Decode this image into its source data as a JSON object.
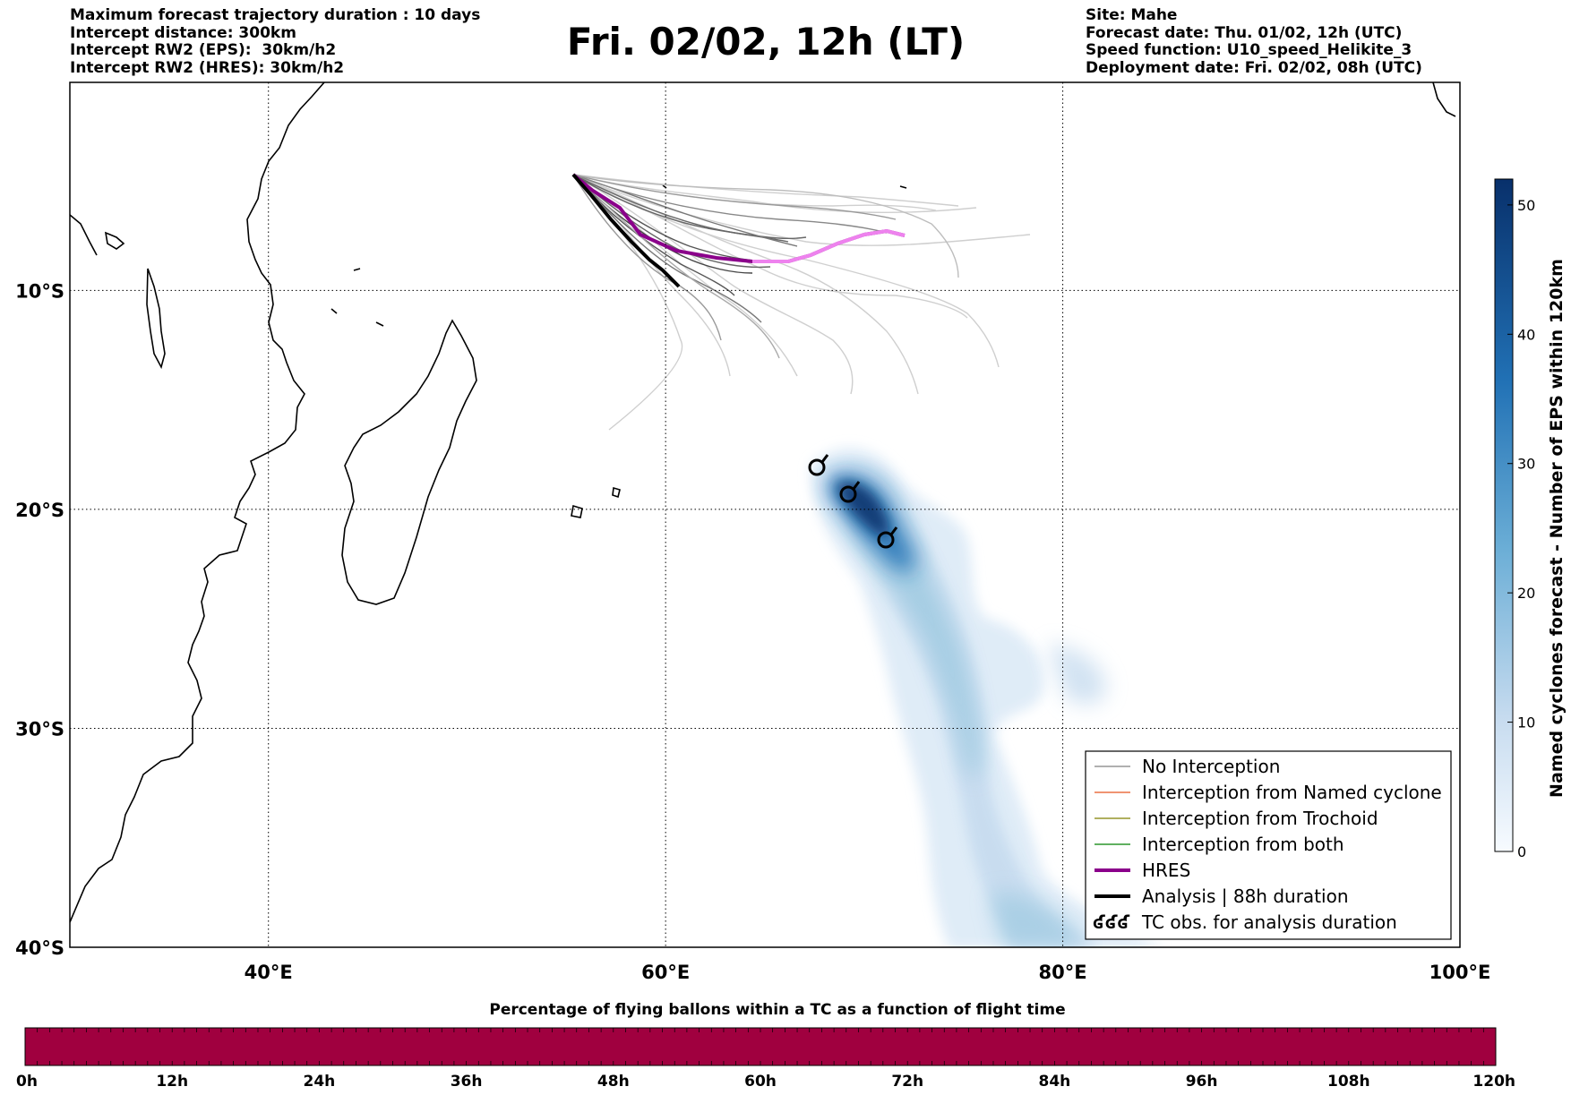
{
  "header_left": [
    "Maximum forecast trajectory duration : 10 days",
    "Intercept distance: 300km",
    "Intercept RW2 (EPS):  30km/h2",
    "Intercept RW2 (HRES): 30km/h2"
  ],
  "header_right": [
    "Site: Mahe",
    "Forecast date: Thu. 01/02, 12h (UTC)",
    "Speed function: U10_speed_Helikite_3",
    "Deployment date: Fri. 02/02, 08h (UTC)"
  ],
  "title": "Fri. 02/02, 12h (LT)",
  "map": {
    "lon_range": [
      30,
      100
    ],
    "lat_range": [
      -40,
      -0.5
    ],
    "lon_ticks": [
      {
        "value": 40,
        "label": "40°E"
      },
      {
        "value": 60,
        "label": "60°E"
      },
      {
        "value": 80,
        "label": "80°E"
      },
      {
        "value": 100,
        "label": "100°E"
      }
    ],
    "lat_ticks": [
      {
        "value": -10,
        "label": "10°S"
      },
      {
        "value": -20,
        "label": "20°S"
      },
      {
        "value": -30,
        "label": "30°S"
      },
      {
        "value": -40,
        "label": "40°S"
      }
    ],
    "grid": "dotted"
  },
  "legend": {
    "placement": "lower-right",
    "items": [
      {
        "label": "No Interception",
        "color": "#808080",
        "style": "thin-line"
      },
      {
        "label": "Interception from Named cyclone",
        "color": "#e8531f",
        "style": "thin-line"
      },
      {
        "label": "Interception from Trochoid",
        "color": "#808000",
        "style": "thin-line"
      },
      {
        "label": "Interception from both",
        "color": "#008000",
        "style": "thin-line"
      },
      {
        "label": "HRES",
        "color": "#8b008b",
        "style": "thick-line"
      },
      {
        "label": "Analysis | 88h duration",
        "color": "#000000",
        "style": "thick-line"
      },
      {
        "label": "TC obs. for analysis duration",
        "color": "#000000",
        "style": "cyclone-symbols",
        "symbol_text": "ʛʛʛ"
      }
    ]
  },
  "colorbar_right": {
    "label": "Named cyclones forecast - Number of EPS within 120km",
    "range": [
      0,
      52
    ],
    "ticks": [
      0,
      10,
      20,
      30,
      40,
      50
    ],
    "colormap": "Blues"
  },
  "colorbar_bottom": {
    "title": "Percentage of flying ballons within a TC as a function of flight time",
    "color": "#a0003f",
    "ticks": [
      "0h",
      "12h",
      "24h",
      "36h",
      "48h",
      "60h",
      "72h",
      "84h",
      "96h",
      "108h",
      "120h"
    ]
  },
  "chart_data": {
    "type": "map",
    "deployment_site": {
      "name": "Mahe",
      "lon": 55.5,
      "lat": -4.6
    },
    "tc_observations": [
      {
        "lon": 67.7,
        "lat": -19.2
      },
      {
        "lon": 69.3,
        "lat": -20.4
      },
      {
        "lon": 71.2,
        "lat": -22.7
      }
    ],
    "hres_track": [
      [
        55.5,
        -4.6
      ],
      [
        56.5,
        -5.6
      ],
      [
        57.8,
        -6.8
      ],
      [
        59.0,
        -8.3
      ],
      [
        60.5,
        -9.2
      ],
      [
        62.5,
        -9.6
      ],
      [
        64.5,
        -9.8
      ],
      [
        66.5,
        -9.9
      ],
      [
        68.0,
        -9.6
      ],
      [
        69.5,
        -8.9
      ],
      [
        71.0,
        -8.2
      ],
      [
        72.5,
        -8.0
      ],
      [
        73.3,
        -8.3
      ]
    ],
    "analysis_track": [
      [
        55.5,
        -4.6
      ],
      [
        56.6,
        -5.9
      ],
      [
        57.8,
        -7.4
      ],
      [
        59.1,
        -8.8
      ],
      [
        60.0,
        -9.7
      ],
      [
        60.8,
        -10.4
      ]
    ],
    "eps_density_core": [
      [
        67.5,
        -19.0
      ],
      [
        70.0,
        -20.0
      ],
      [
        72.5,
        -23.0
      ],
      [
        74.5,
        -26.5
      ],
      [
        76.5,
        -31.0
      ],
      [
        77.0,
        -35.0
      ],
      [
        78.0,
        -38.5
      ],
      [
        80.5,
        -40.0
      ]
    ]
  }
}
